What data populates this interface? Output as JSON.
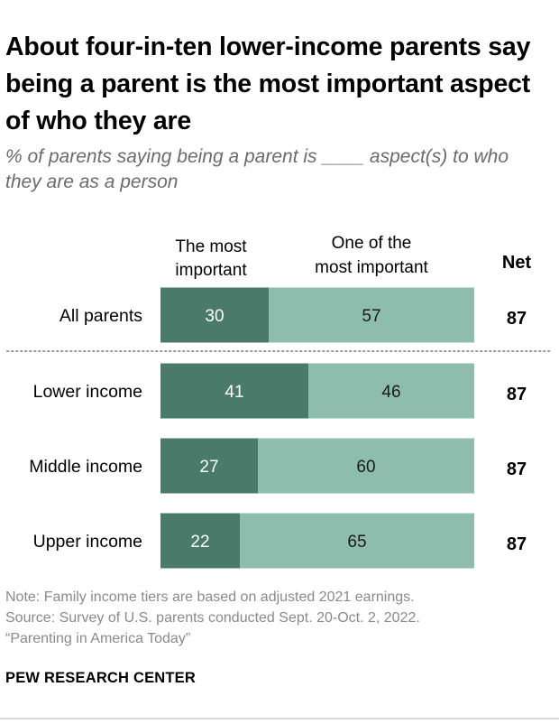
{
  "title": "About four-in-ten lower-income parents say being a parent is the most important aspect of who they are",
  "subtitle": "% of parents saying being a parent is ____ aspect(s) to who they are as a person",
  "chart_data": {
    "type": "bar",
    "orientation": "horizontal",
    "stacked": true,
    "categories": [
      "All parents",
      "Lower income",
      "Middle income",
      "Upper income"
    ],
    "series": [
      {
        "name": "The most important",
        "values": [
          30,
          41,
          27,
          22
        ],
        "color": "#4a7a6a"
      },
      {
        "name": "One of the most important",
        "values": [
          57,
          46,
          60,
          65
        ],
        "color": "#8ebdae"
      }
    ],
    "net_label": "Net",
    "net_values": [
      87,
      87,
      87,
      87
    ],
    "xlim": [
      0,
      100
    ]
  },
  "legend_labels": {
    "most": [
      "The most",
      "important"
    ],
    "one_of": [
      "One of the",
      "most important"
    ]
  },
  "note": "Note: Family income tiers are based on adjusted 2021 earnings.",
  "source": "Source: Survey of U.S. parents conducted Sept. 20-Oct. 2, 2022.",
  "report": "“Parenting in America Today”",
  "brand": "PEW RESEARCH CENTER",
  "colors": {
    "dark": "#4a7a6a",
    "light": "#8ebdae",
    "divider": "#9a9a9a"
  }
}
